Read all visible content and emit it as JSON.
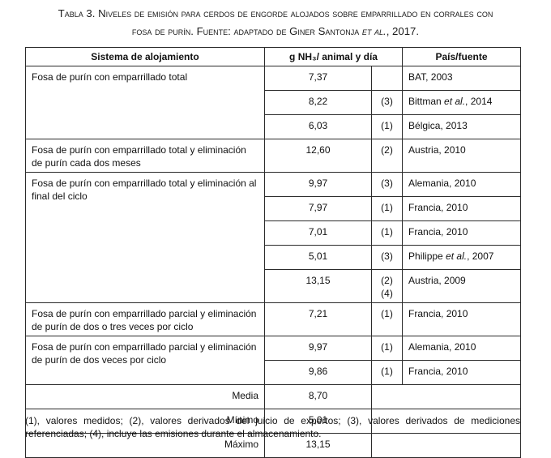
{
  "caption": {
    "line1_prefix": "Tabla 3. Niveles de emisión para cerdos de engorde alojados sobre emparrillado en corrales con",
    "line2_prefix": "fosa de purín. Fuente: adaptado de Giner Santonja",
    "line2_italic": "et al.",
    "line2_suffix": ", 2017."
  },
  "table": {
    "headers": {
      "system": "Sistema de alojamiento",
      "value": "g NH₃/ animal y día",
      "source": "País/fuente"
    },
    "groups": [
      {
        "system": "Fosa de purín con emparrillado total",
        "rows": [
          {
            "value": "7,37",
            "ref": "",
            "source": "BAT, 2003"
          },
          {
            "value": "8,22",
            "ref": "(3)",
            "source_pre": "Bittman ",
            "source_it": "et al.",
            "source_post": ", 2014"
          },
          {
            "value": "6,03",
            "ref": "(1)",
            "source": "Bélgica, 2013"
          }
        ]
      },
      {
        "system": "Fosa de purín con emparrillado total y eliminación de purín cada dos meses",
        "rows": [
          {
            "value": "12,60",
            "ref": "(2)",
            "source": "Austria, 2010"
          }
        ]
      },
      {
        "system": "Fosa de purín con emparrillado total y eliminación al final del ciclo",
        "rows": [
          {
            "value": "9,97",
            "ref": "(3)",
            "source": "Alemania, 2010"
          },
          {
            "value": "7,97",
            "ref": "(1)",
            "source": "Francia, 2010"
          },
          {
            "value": "7,01",
            "ref": "(1)",
            "source": "Francia, 2010"
          },
          {
            "value": "5,01",
            "ref": "(3)",
            "source_pre": "Philippe ",
            "source_it": "et al.",
            "source_post": ", 2007"
          },
          {
            "value": "13,15",
            "ref": "(2)",
            "ref2": "(4)",
            "source": "Austria, 2009"
          }
        ]
      },
      {
        "system": "Fosa de purín con emparrillado parcial y eliminación de purín de dos o tres veces por ciclo",
        "rows": [
          {
            "value": "7,21",
            "ref": "(1)",
            "source": "Francia, 2010"
          }
        ]
      },
      {
        "system": "Fosa de purín con emparrillado parcial y eliminación de purín de dos veces por ciclo",
        "rows": [
          {
            "value": "9,97",
            "ref": "(1)",
            "source": "Alemania, 2010"
          },
          {
            "value": "9,86",
            "ref": "(1)",
            "source": "Francia, 2010"
          }
        ]
      }
    ],
    "summary": [
      {
        "label": "Media",
        "value": "8,70"
      },
      {
        "label": "Mínimo",
        "value": "5,01"
      },
      {
        "label": "Máximo",
        "value": "13,15"
      }
    ]
  },
  "footnote": "(1), valores medidos; (2), valores derivados del juicio de expertos; (3), valores derivados de mediciones referenciadas; (4), incluye las emisiones durante el almacenamiento."
}
